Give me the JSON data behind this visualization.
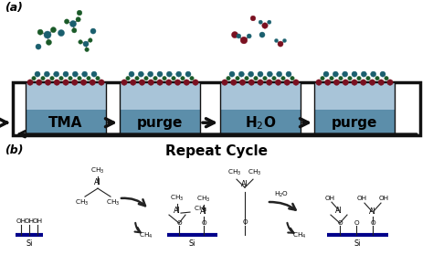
{
  "fig_width": 4.74,
  "fig_height": 2.79,
  "dpi": 100,
  "bg_color": "#ffffff",
  "panel_a_label": "(a)",
  "panel_b_label": "(b)",
  "repeat_cycle_text": "Repeat Cycle",
  "step_labels": [
    "TMA",
    "purge",
    "H₂O",
    "purge"
  ],
  "box_color_top": "#a8c4d8",
  "box_color_bottom": "#5c8eaa",
  "box_border": "#111111",
  "arrow_color": "#111111",
  "teal_color": "#1a5f6e",
  "red_color": "#7a1020",
  "green_color": "#1a5a28",
  "si_line_color": "#00008b",
  "text_color": "#000000",
  "outer_rect_color": "#111111"
}
